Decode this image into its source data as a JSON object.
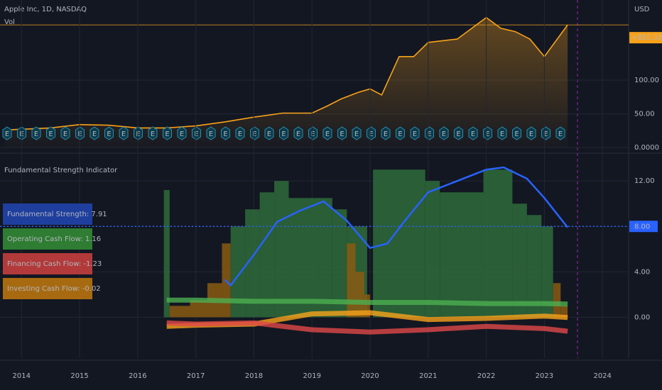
{
  "chart_data": [
    {
      "type": "line",
      "title": "Apple Inc, 1D, NASDAQ",
      "subtitle": "Vol",
      "y_axis_label": "USD",
      "last_label": "+852.32%",
      "event_label": "E",
      "color": "#f7a21b",
      "x": [
        2013.7,
        2014,
        2014.5,
        2015,
        2015.5,
        2016,
        2016.5,
        2017,
        2017.5,
        2018,
        2018.5,
        2019,
        2019.25,
        2019.5,
        2019.8,
        2020,
        2020.2,
        2020.5,
        2020.75,
        2021,
        2021.5,
        2022,
        2022.25,
        2022.5,
        2022.75,
        2023,
        2023.4
      ],
      "values": [
        26,
        27,
        29,
        34,
        33,
        29,
        29,
        32,
        38,
        45,
        51,
        51,
        61,
        72,
        82,
        87,
        78,
        135,
        135,
        156,
        161,
        193,
        177,
        172,
        161,
        135,
        182
      ],
      "xlim": [
        2013.63,
        2024.45
      ],
      "ylim": [
        -7.4,
        219
      ],
      "yticks": [
        {
          "value": 0,
          "label": "0.0000"
        },
        {
          "value": 50,
          "label": "50.00"
        },
        {
          "value": 100,
          "label": "100.00"
        }
      ]
    },
    {
      "type": "indicator",
      "title": "Fundamental Strength Indicator",
      "xlim": [
        2013.63,
        2024.45
      ],
      "ylim": [
        -3.6,
        13.7
      ],
      "xticks": [
        2014,
        2015,
        2016,
        2017,
        2018,
        2019,
        2020,
        2021,
        2022,
        2023,
        2024
      ],
      "yticks": [
        {
          "value": 0,
          "label": "0.00"
        },
        {
          "value": 4,
          "label": "4.00"
        },
        {
          "value": 8,
          "label": "8.00"
        },
        {
          "value": 12,
          "label": "12.00"
        }
      ],
      "threshold": 8,
      "areas": [
        {
          "color": "#2e6b3a",
          "x": [
            2016.45,
            2016.55,
            2017.6,
            2017.85,
            2018.1,
            2018.35,
            2018.6,
            2019.35,
            2019.6,
            2019.95,
            2020.05,
            2020.95,
            2021.2,
            2021.95,
            2022.45,
            2022.7,
            2022.95,
            2023.15
          ],
          "values": [
            11.2,
            null,
            8,
            9.5,
            11,
            12,
            10.5,
            9.5,
            8,
            null,
            13,
            12,
            11,
            13,
            10,
            9,
            8,
            null
          ]
        },
        {
          "color": "#8a5a12",
          "x": [
            2016.55,
            2016.9,
            2017.2,
            2017.45,
            2017.6,
            2019.6,
            2019.75,
            2019.9,
            2020.0,
            2023.15,
            2023.28,
            2023.4
          ],
          "values": [
            1,
            1.5,
            3,
            6.5,
            null,
            6.5,
            4,
            2,
            null,
            3,
            1,
            null
          ]
        }
      ],
      "series": [
        {
          "name": "Fundamental Strength",
          "color": "#2962ff",
          "x": [
            2017.5,
            2017.6,
            2018,
            2018.4,
            2018.8,
            2019.2,
            2019.6,
            2020.0,
            2020.3,
            2020.6,
            2021,
            2021.5,
            2022,
            2022.3,
            2022.7,
            2023,
            2023.4
          ],
          "values": [
            3.3,
            2.8,
            5.5,
            8.4,
            9.4,
            10.2,
            8.5,
            6.1,
            6.5,
            8.5,
            11,
            12,
            13,
            13.2,
            12.2,
            10.5,
            7.91
          ]
        },
        {
          "name": "Operating Cash Flow",
          "color": "#4caf50",
          "x": [
            2016.5,
            2017,
            2018,
            2019,
            2020,
            2021,
            2022,
            2023,
            2023.4
          ],
          "values": [
            1.5,
            1.5,
            1.4,
            1.4,
            1.3,
            1.3,
            1.2,
            1.2,
            1.16
          ]
        },
        {
          "name": "Financing Cash Flow",
          "color": "#e04848",
          "x": [
            2016.5,
            2017,
            2018,
            2019,
            2020,
            2021,
            2022,
            2023,
            2023.4
          ],
          "values": [
            -0.5,
            -0.6,
            -0.5,
            -1.1,
            -1.3,
            -1.1,
            -0.8,
            -1.0,
            -1.23
          ]
        },
        {
          "name": "Investing Cash Flow",
          "color": "#f7a21b",
          "x": [
            2016.5,
            2017,
            2018,
            2019,
            2020,
            2021,
            2022,
            2023,
            2023.4
          ],
          "values": [
            -0.8,
            -0.7,
            -0.6,
            0.3,
            0.4,
            -0.2,
            -0.1,
            0.1,
            -0.02
          ]
        }
      ],
      "labels": [
        {
          "text": "Fundamental Strength: 7.91",
          "color": "#1f3f9e"
        },
        {
          "text": "Operating Cash Flow: 1.16",
          "color": "#2e7d32"
        },
        {
          "text": "Financing Cash Flow: -1.23",
          "color": "#b23a3a"
        },
        {
          "text": "Investing Cash Flow: -0.02",
          "color": "#a86a10"
        }
      ]
    }
  ]
}
